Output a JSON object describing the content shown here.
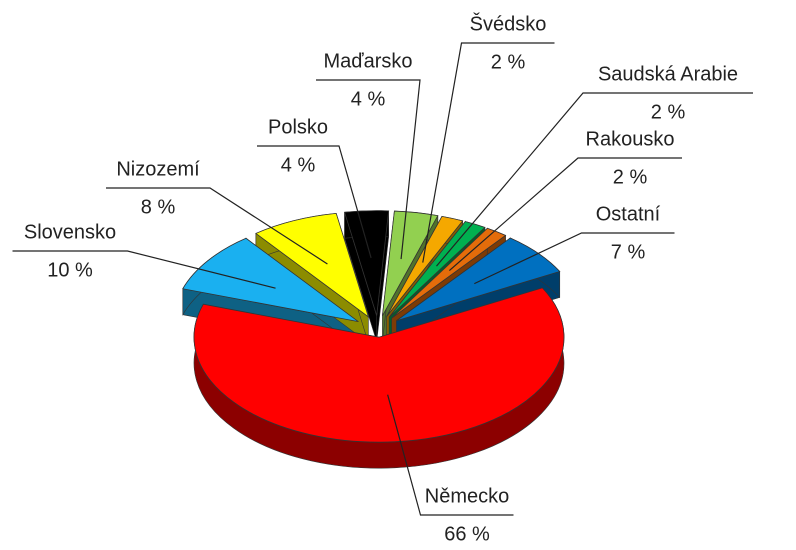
{
  "chart_data": {
    "type": "pie",
    "categories": [
      "Německo",
      "Slovensko",
      "Nizozemí",
      "Polsko",
      "Maďarsko",
      "Švédsko",
      "Saudská Arabie",
      "Rakousko",
      "Ostatní"
    ],
    "values": [
      66,
      10,
      8,
      4,
      4,
      2,
      2,
      2,
      7
    ],
    "value_labels": [
      "66 %",
      "10 %",
      "8 %",
      "4 %",
      "4 %",
      "2 %",
      "2 %",
      "2 %",
      "7 %"
    ],
    "colors": [
      "#ff0000",
      "#1ab0f0",
      "#ffff00",
      "#000000",
      "#92d050",
      "#f5a800",
      "#00b050",
      "#e46c0a",
      "#0070c0"
    ]
  }
}
